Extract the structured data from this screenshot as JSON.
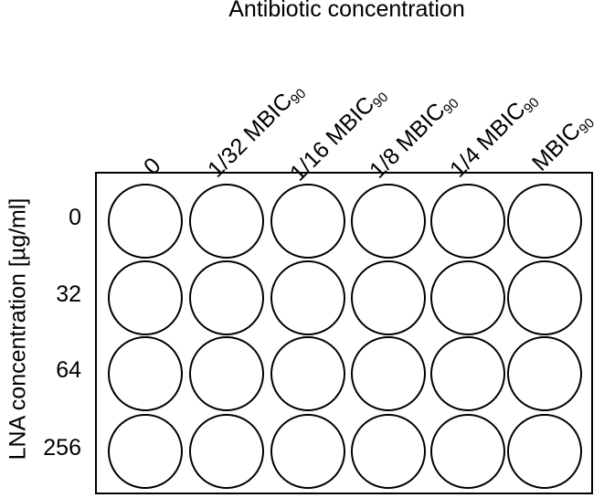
{
  "column_axis_title": "Antibiotic concentration",
  "row_axis_title": "LNA concentration [µg/ml]",
  "columns": [
    {
      "main": "0",
      "sub": ""
    },
    {
      "main": "1/32 MBIC",
      "sub": "90"
    },
    {
      "main": "1/16 MBIC",
      "sub": "90"
    },
    {
      "main": "1/8 MBIC",
      "sub": "90"
    },
    {
      "main": "1/4 MBIC",
      "sub": "90"
    },
    {
      "main": "MBIC",
      "sub": "90"
    }
  ],
  "rows": [
    "0",
    "32",
    "64",
    "256"
  ]
}
